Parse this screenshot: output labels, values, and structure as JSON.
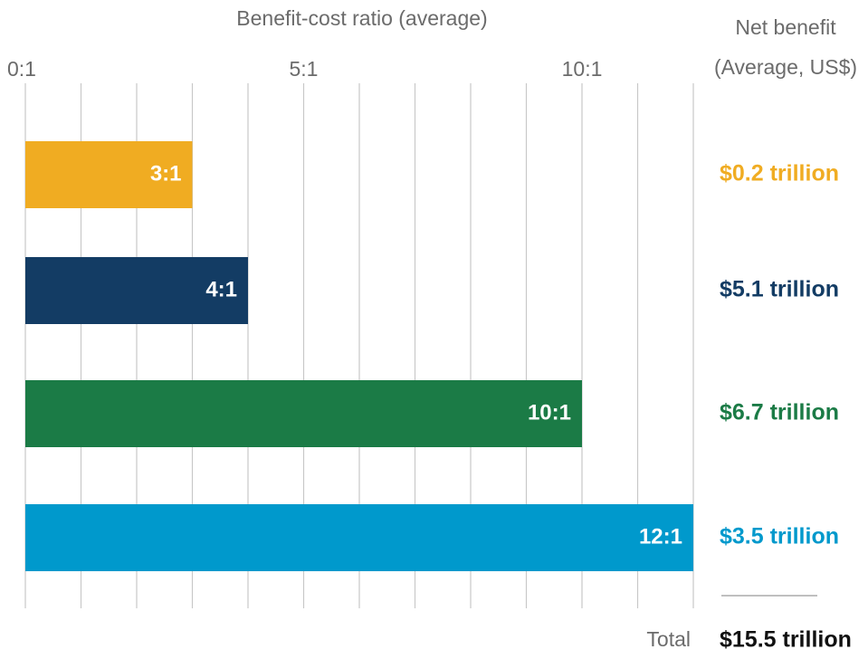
{
  "chart_data": {
    "type": "bar",
    "orientation": "horizontal",
    "xlabel": "Benefit-cost ratio (average)",
    "values": [
      3,
      4,
      10,
      12
    ],
    "value_labels": [
      "3:1",
      "4:1",
      "10:1",
      "12:1"
    ],
    "colors": [
      "#f0ac22",
      "#133c64",
      "#1b7b46",
      "#0099cc"
    ],
    "xlim": [
      0,
      12
    ],
    "xticks": [
      {
        "value": 0,
        "label": "0:1"
      },
      {
        "value": 5,
        "label": "5:1"
      },
      {
        "value": 10,
        "label": "10:1"
      }
    ],
    "xgrid": [
      0,
      1,
      2,
      3,
      4,
      5,
      6,
      7,
      8,
      9,
      10,
      11,
      12
    ],
    "side_title": "Net benefit",
    "side_subtitle": "(Average, US$)",
    "side_labels": [
      "$0.2 trillion",
      "$5.1 trillion",
      "$6.7 trillion",
      "$3.5 trillion"
    ],
    "total_label": "Total",
    "total_value": "$15.5 trillion"
  }
}
